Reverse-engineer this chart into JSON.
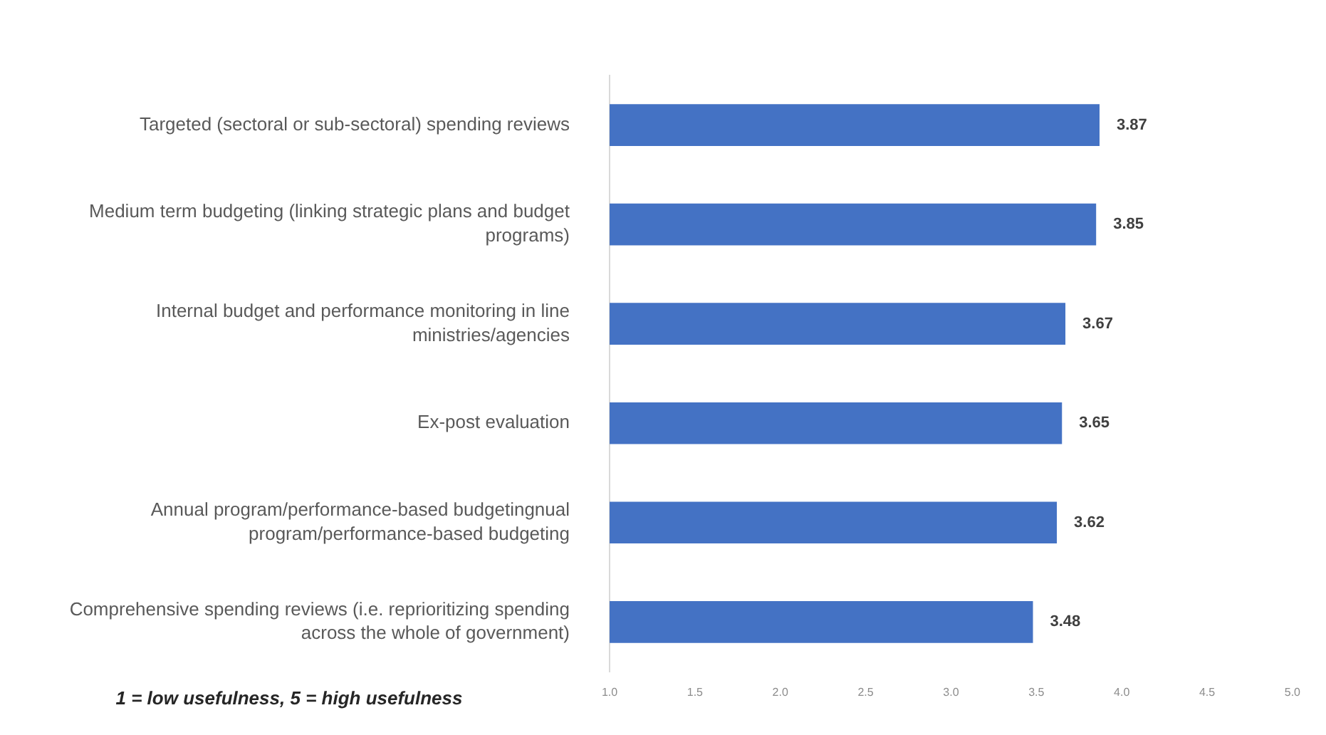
{
  "chart_data": {
    "type": "bar",
    "orientation": "horizontal",
    "categories": [
      "Targeted (sectoral or sub-sectoral) spending reviews",
      "Medium term budgeting (linking strategic plans and budget programs)",
      "Internal budget and performance monitoring in line ministries/agencies",
      "Ex-post evaluation",
      "Annual program/performance-based budgetingnual program/performance-based budgeting",
      "Comprehensive spending reviews (i.e. reprioritizing spending across the whole of government)"
    ],
    "values": [
      3.87,
      3.85,
      3.67,
      3.65,
      3.62,
      3.48
    ],
    "color": "#4472c4",
    "xlim": [
      1,
      5
    ],
    "xticks": [
      {
        "value": 1,
        "label": "1.0"
      },
      {
        "value": 1.5,
        "label": "1.5"
      },
      {
        "value": 2,
        "label": "2.0"
      },
      {
        "value": 2.5,
        "label": "2.5"
      },
      {
        "value": 3,
        "label": "3.0"
      },
      {
        "value": 3.5,
        "label": "3.5"
      },
      {
        "value": 4,
        "label": "4.0"
      },
      {
        "value": 4.5,
        "label": "4.5"
      },
      {
        "value": 5,
        "label": "5.0"
      }
    ],
    "data_labels": true,
    "grid": false,
    "legend": false,
    "annotations": [
      "1 = low usefulness, 5 = high usefulness"
    ]
  }
}
